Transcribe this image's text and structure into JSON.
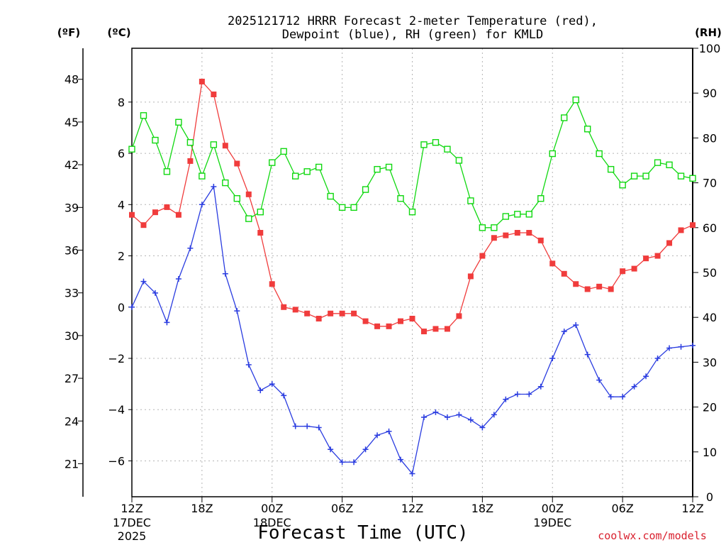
{
  "chart_data": {
    "type": "line",
    "title_line1": "2025121712 HRRR Forecast 2-meter Temperature (red),",
    "title_line2": "Dewpoint (blue), RH (green) for KMLD",
    "xlabel": "Forecast Time (UTC)",
    "credit": "coolwx.com/models",
    "unit_left_f": "(ºF)",
    "unit_left_c": "(ºC)",
    "unit_right": "(RH)",
    "x_hours": [
      0,
      1,
      2,
      3,
      4,
      5,
      6,
      7,
      8,
      9,
      10,
      11,
      12,
      13,
      14,
      15,
      16,
      17,
      18,
      19,
      20,
      21,
      22,
      23,
      24,
      25,
      26,
      27,
      28,
      29,
      30,
      31,
      32,
      33,
      34,
      35,
      36,
      37,
      38,
      39,
      40,
      41,
      42,
      43,
      44,
      45,
      46,
      47,
      48
    ],
    "x_tick_labels": [
      {
        "hour": 0,
        "label": "12Z",
        "date": "17DEC",
        "year": "2025"
      },
      {
        "hour": 6,
        "label": "18Z"
      },
      {
        "hour": 12,
        "label": "00Z",
        "date": "18DEC"
      },
      {
        "hour": 18,
        "label": "06Z"
      },
      {
        "hour": 24,
        "label": "12Z"
      },
      {
        "hour": 30,
        "label": "18Z"
      },
      {
        "hour": 36,
        "label": "00Z",
        "date": "19DEC"
      },
      {
        "hour": 42,
        "label": "06Z"
      },
      {
        "hour": 48,
        "label": "12Z"
      }
    ],
    "celsius_axis": {
      "range": [
        -7.4,
        10.1
      ],
      "ticks": [
        -6,
        -4,
        -2,
        0,
        2,
        4,
        6,
        8
      ]
    },
    "fahrenheit_ticks": [
      21,
      24,
      27,
      30,
      33,
      36,
      39,
      42,
      45,
      48
    ],
    "rh_axis": {
      "range": [
        0,
        100
      ],
      "ticks": [
        0,
        10,
        20,
        30,
        40,
        50,
        60,
        70,
        80,
        90,
        100
      ]
    },
    "grid": true,
    "series": [
      {
        "name": "Temperature",
        "color": "#f03c3c",
        "marker": "filled-square",
        "axis": "celsius",
        "values": [
          3.6,
          3.2,
          3.7,
          3.9,
          3.6,
          5.7,
          8.8,
          8.3,
          6.3,
          5.6,
          4.4,
          2.9,
          0.9,
          0.0,
          -0.1,
          -0.25,
          -0.45,
          -0.25,
          -0.25,
          -0.25,
          -0.55,
          -0.75,
          -0.75,
          -0.55,
          -0.45,
          -0.95,
          -0.85,
          -0.85,
          -0.35,
          1.2,
          2.0,
          2.7,
          2.8,
          2.9,
          2.9,
          2.6,
          1.7,
          1.3,
          0.9,
          0.7,
          0.8,
          0.7,
          1.4,
          1.5,
          1.9,
          2.0,
          2.5,
          3.0,
          3.2
        ]
      },
      {
        "name": "Dewpoint",
        "color": "#2a3ce0",
        "marker": "plus",
        "axis": "celsius",
        "values": [
          0.0,
          1.0,
          0.55,
          -0.6,
          1.1,
          2.3,
          4.0,
          4.7,
          1.3,
          -0.15,
          -2.25,
          -3.25,
          -3.0,
          -3.45,
          -4.65,
          -4.65,
          -4.7,
          -5.55,
          -6.05,
          -6.05,
          -5.55,
          -5.0,
          -4.85,
          -5.95,
          -6.5,
          -4.3,
          -4.1,
          -4.3,
          -4.2,
          -4.4,
          -4.7,
          -4.2,
          -3.6,
          -3.4,
          -3.4,
          -3.1,
          -2.0,
          -0.95,
          -0.7,
          -1.85,
          -2.85,
          -3.5,
          -3.5,
          -3.1,
          -2.7,
          -2.0,
          -1.6,
          -1.55,
          -1.5
        ]
      },
      {
        "name": "RH",
        "color": "#10d810",
        "marker": "open-square",
        "axis": "rh",
        "values": [
          77.5,
          85,
          79.5,
          72.5,
          83.5,
          79,
          71.5,
          78.5,
          70,
          66.5,
          62,
          63.5,
          74.5,
          77,
          71.5,
          72.5,
          73.5,
          67,
          64.5,
          64.5,
          68.5,
          73,
          73.5,
          66.5,
          63.5,
          78.5,
          79,
          77.5,
          75,
          66,
          60,
          60,
          62.5,
          63,
          63,
          66.5,
          76.5,
          84.5,
          88.5,
          82,
          76.5,
          73,
          69.5,
          71.5,
          71.5,
          74.5,
          74,
          71.5,
          71
        ]
      }
    ]
  }
}
